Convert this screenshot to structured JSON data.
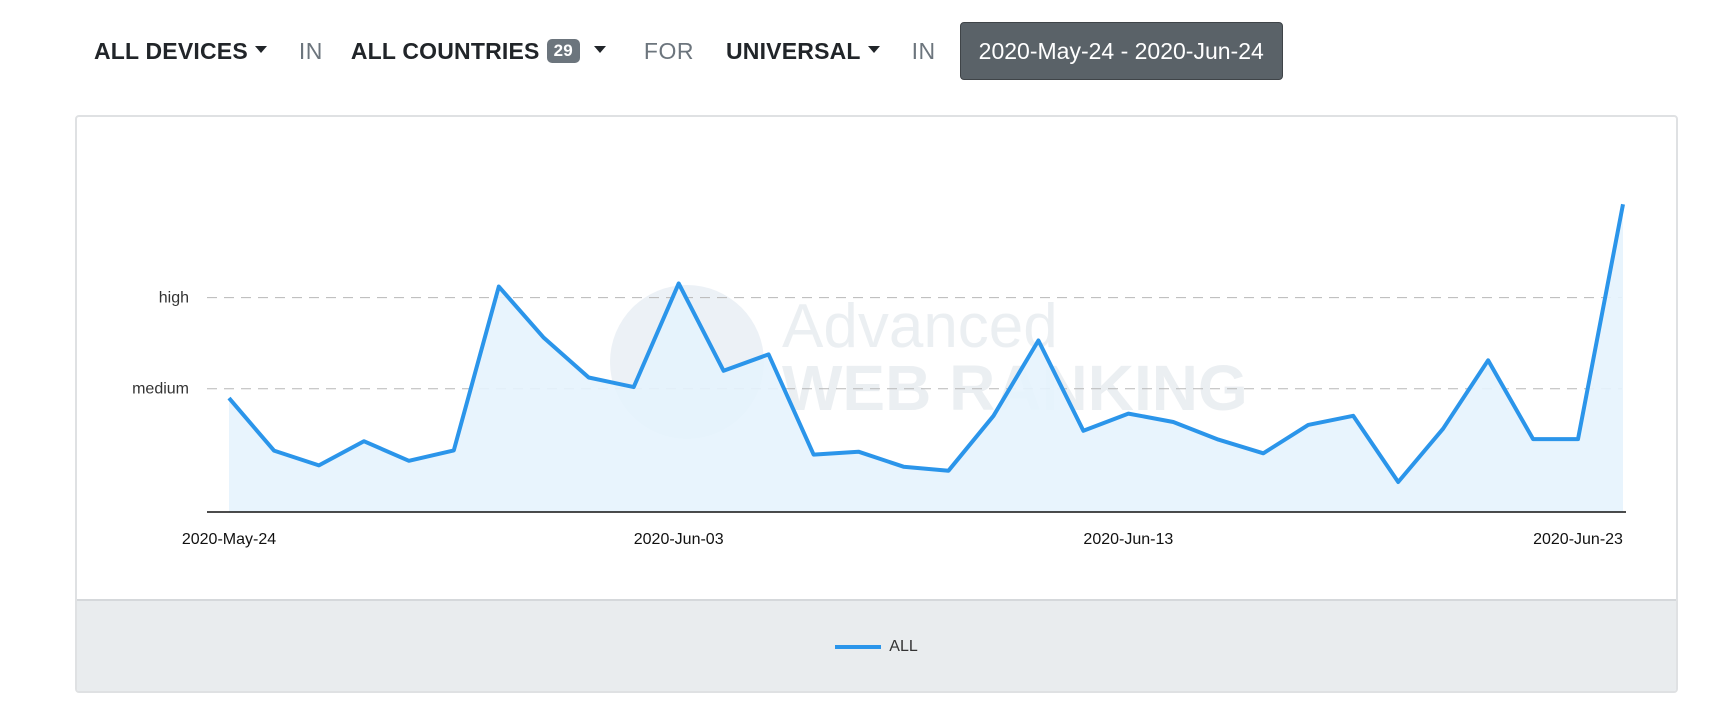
{
  "filters": {
    "devices": "ALL DEVICES",
    "sep_in_1": "IN",
    "countries": "ALL COUNTRIES",
    "countries_count": "29",
    "sep_for": "FOR",
    "engine": "UNIVERSAL",
    "sep_in_2": "IN",
    "date_range": "2020-May-24 - 2020-Jun-24"
  },
  "watermark": {
    "line1": "Advanced",
    "line2": "WEB RANKING"
  },
  "colors": {
    "line": "#2b95ea",
    "fill": "#e6f3fd"
  },
  "chart_data": {
    "type": "area",
    "x": [
      "2020-May-24",
      "2020-May-25",
      "2020-May-26",
      "2020-May-27",
      "2020-May-28",
      "2020-May-29",
      "2020-May-30",
      "2020-May-31",
      "2020-Jun-01",
      "2020-Jun-02",
      "2020-Jun-03",
      "2020-Jun-04",
      "2020-Jun-05",
      "2020-Jun-06",
      "2020-Jun-07",
      "2020-Jun-08",
      "2020-Jun-09",
      "2020-Jun-10",
      "2020-Jun-11",
      "2020-Jun-12",
      "2020-Jun-13",
      "2020-Jun-14",
      "2020-Jun-15",
      "2020-Jun-16",
      "2020-Jun-17",
      "2020-Jun-18",
      "2020-Jun-19",
      "2020-Jun-20",
      "2020-Jun-21",
      "2020-Jun-22",
      "2020-Jun-23",
      "2020-Jun-24"
    ],
    "series": [
      {
        "name": "ALL",
        "values": [
          42.5,
          22.9,
          17.4,
          26.4,
          19.1,
          23.0,
          84.1,
          65.0,
          50.2,
          46.6,
          85.3,
          52.7,
          58.8,
          21.4,
          22.5,
          16.9,
          15.4,
          35.9,
          64.0,
          30.3,
          36.7,
          33.6,
          27.0,
          21.9,
          32.5,
          35.9,
          11.2,
          31.1,
          56.6,
          27.2,
          27.2,
          114.8
        ]
      }
    ],
    "y_tick_labels": [
      {
        "value": 46,
        "label": "medium"
      },
      {
        "value": 80,
        "label": "high"
      }
    ],
    "x_tick_labels": [
      "2020-May-24",
      "2020-Jun-03",
      "2020-Jun-13",
      "2020-Jun-23"
    ],
    "ylim": [
      0,
      125
    ],
    "grid": "dashed horizontal at medium and high",
    "legend": "bottom-center"
  }
}
